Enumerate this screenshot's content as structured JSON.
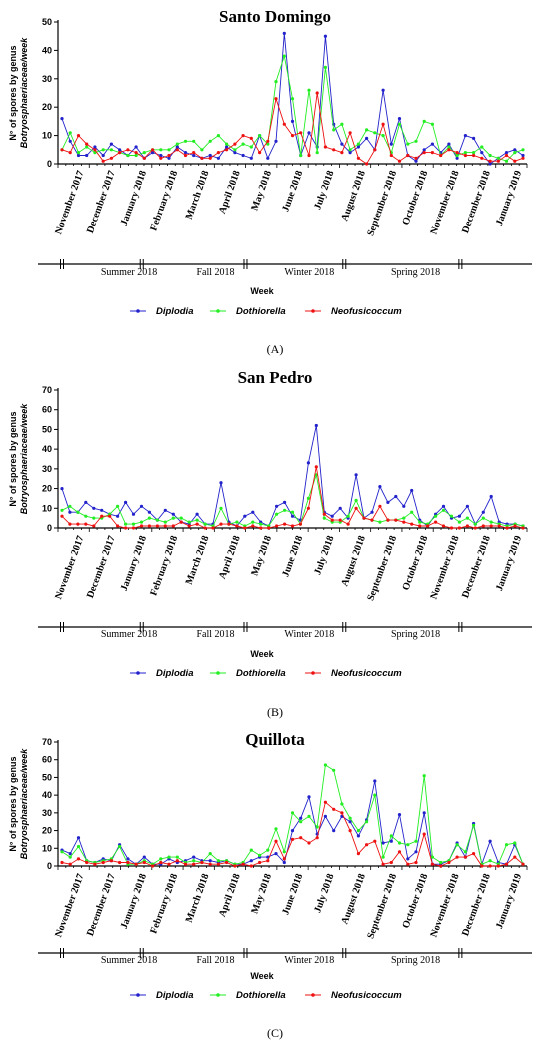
{
  "colors": {
    "Diplodia": "#2222cc",
    "Dothiorella": "#22ee22",
    "Neofusicoccum": "#ee1111"
  },
  "week_label": "Week",
  "ylabel_line1": "N° of spores by genus",
  "ylabel_line2": "Botryosphaeriaceae/week",
  "chart_data": [
    {
      "type": "line",
      "title": "Santo Domingo",
      "caption": "(A)",
      "xlabel": "Week",
      "ylabel": "N° of spores by genus Botryosphaeriaceae/week",
      "ylim": [
        0,
        50
      ],
      "yticks": [
        0,
        10,
        20,
        30,
        40,
        50
      ],
      "grid": false,
      "legend_position": "bottom",
      "x_month_labels": [
        "November 2017",
        "December 2017",
        "January 2018",
        "February 2018",
        "March 2018",
        "April 2018",
        "May 2018",
        "June 2018",
        "July 2018",
        "August 2018",
        "September 2018",
        "October 2018",
        "November 2018",
        "December 2018",
        "January 2019"
      ],
      "seasons": [
        "Summer 2018",
        "Fall 2018",
        "Winter 2018",
        "Spring 2018"
      ],
      "series": [
        {
          "name": "Diplodia",
          "values": [
            16,
            8,
            3,
            3,
            6,
            3,
            7,
            5,
            3,
            6,
            2,
            4,
            3,
            2,
            6,
            4,
            3,
            2,
            3,
            2,
            6,
            4,
            3,
            2,
            10,
            2,
            8,
            46,
            15,
            3,
            11,
            6,
            45,
            14,
            7,
            4,
            6,
            9,
            5,
            26,
            7,
            16,
            3,
            1,
            5,
            7,
            4,
            7,
            2,
            10,
            9,
            4,
            0,
            2,
            4,
            5,
            3
          ]
        },
        {
          "name": "Dothiorella",
          "values": [
            5,
            11,
            4,
            6,
            4,
            5,
            5,
            4,
            3,
            3,
            4,
            5,
            5,
            5,
            7,
            8,
            8,
            5,
            8,
            10,
            7,
            5,
            7,
            6,
            10,
            7,
            29,
            38,
            23,
            3,
            26,
            4,
            34,
            12,
            14,
            5,
            7,
            12,
            11,
            10,
            4,
            14,
            7,
            8,
            15,
            14,
            3,
            6,
            3,
            4,
            4,
            6,
            3,
            2,
            1,
            4,
            5
          ]
        },
        {
          "name": "Neofusicoccum",
          "values": [
            5,
            4,
            10,
            7,
            5,
            1,
            2,
            4,
            5,
            4,
            2,
            5,
            2,
            3,
            5,
            3,
            4,
            2,
            2,
            4,
            5,
            7,
            10,
            9,
            4,
            8,
            23,
            14,
            10,
            11,
            3,
            25,
            6,
            5,
            4,
            11,
            2,
            0,
            5,
            14,
            3,
            1,
            3,
            2,
            4,
            4,
            3,
            5,
            4,
            3,
            3,
            2,
            1,
            1,
            3,
            1,
            2
          ]
        }
      ]
    },
    {
      "type": "line",
      "title": "San Pedro",
      "caption": "(B)",
      "xlabel": "Week",
      "ylabel": "N° of spores by genus Botryosphaeriaceae/week",
      "ylim": [
        0,
        70
      ],
      "yticks": [
        0,
        10,
        20,
        30,
        40,
        50,
        60,
        70
      ],
      "grid": false,
      "legend_position": "bottom",
      "x_month_labels": [
        "November 2017",
        "December 2017",
        "January 2018",
        "February 2018",
        "March 2018",
        "April 2018",
        "May 2018",
        "June 2018",
        "July 2018",
        "August 2018",
        "September 2018",
        "October 2018",
        "November 2018",
        "December 2018",
        "January 2019"
      ],
      "seasons": [
        "Summer 2018",
        "Fall 2018",
        "Winter 2018",
        "Spring 2018"
      ],
      "series": [
        {
          "name": "Diplodia",
          "values": [
            20,
            8,
            8,
            13,
            10,
            9,
            7,
            6,
            13,
            7,
            11,
            8,
            4,
            9,
            7,
            3,
            2,
            7,
            2,
            2,
            23,
            3,
            1,
            6,
            8,
            3,
            1,
            11,
            13,
            6,
            4,
            33,
            52,
            8,
            6,
            10,
            5,
            27,
            5,
            8,
            21,
            13,
            16,
            11,
            19,
            4,
            1,
            7,
            11,
            5,
            6,
            11,
            2,
            8,
            16,
            3,
            2,
            2,
            1
          ]
        },
        {
          "name": "Dothiorella",
          "values": [
            9,
            11,
            8,
            6,
            5,
            5,
            7,
            11,
            2,
            2,
            3,
            5,
            4,
            3,
            5,
            5,
            3,
            4,
            2,
            1,
            10,
            2,
            3,
            1,
            3,
            2,
            1,
            7,
            9,
            8,
            2,
            15,
            27,
            5,
            3,
            3,
            6,
            14,
            5,
            4,
            3,
            4,
            4,
            5,
            8,
            3,
            2,
            6,
            9,
            6,
            3,
            5,
            2,
            5,
            3,
            2,
            1,
            2,
            1
          ]
        },
        {
          "name": "Neofusicoccum",
          "values": [
            6,
            2,
            2,
            2,
            1,
            6,
            6,
            1,
            0,
            0,
            1,
            1,
            1,
            1,
            1,
            3,
            1,
            2,
            0,
            0,
            2,
            2,
            1,
            0,
            1,
            0,
            0,
            1,
            2,
            1,
            2,
            10,
            31,
            7,
            4,
            4,
            2,
            10,
            5,
            4,
            11,
            4,
            4,
            3,
            2,
            1,
            1,
            3,
            1,
            0,
            0,
            1,
            0,
            1,
            1,
            1,
            0,
            1,
            0
          ]
        }
      ]
    },
    {
      "type": "line",
      "title": "Quillota",
      "caption": "(C)",
      "xlabel": "Week",
      "ylabel": "N° of spores by genus Botryosphaeriaceae/week",
      "ylim": [
        0,
        70
      ],
      "yticks": [
        0,
        10,
        20,
        30,
        40,
        50,
        60,
        70
      ],
      "grid": false,
      "legend_position": "bottom",
      "x_month_labels": [
        "November 2017",
        "December 2017",
        "January 2018",
        "February 2018",
        "March 2018",
        "April 2018",
        "May 2018",
        "June 2018",
        "July 2018",
        "August 2018",
        "September 2018",
        "October 2018",
        "November 2018",
        "December 2018",
        "January 2019"
      ],
      "seasons": [
        "Summer 2018",
        "Fall 2018",
        "Winter 2018",
        "Spring 2018"
      ],
      "series": [
        {
          "name": "Diplodia",
          "values": [
            9,
            7,
            16,
            3,
            2,
            4,
            3,
            12,
            4,
            1,
            5,
            1,
            1,
            4,
            2,
            3,
            5,
            3,
            3,
            2,
            3,
            1,
            1,
            3,
            5,
            5,
            7,
            2,
            20,
            27,
            39,
            18,
            28,
            20,
            28,
            25,
            17,
            26,
            48,
            13,
            14,
            29,
            4,
            8,
            30,
            1,
            1,
            3,
            13,
            5,
            24,
            1,
            14,
            2,
            1,
            12,
            1
          ]
        },
        {
          "name": "Dothiorella",
          "values": [
            8,
            5,
            11,
            3,
            2,
            3,
            4,
            11,
            1,
            1,
            3,
            1,
            4,
            5,
            5,
            2,
            3,
            2,
            7,
            3,
            3,
            1,
            2,
            9,
            6,
            9,
            21,
            8,
            30,
            25,
            28,
            22,
            57,
            54,
            35,
            27,
            20,
            25,
            40,
            5,
            17,
            13,
            12,
            14,
            51,
            5,
            2,
            3,
            12,
            8,
            23,
            1,
            3,
            1,
            12,
            13,
            1
          ]
        },
        {
          "name": "Neofusicoccum",
          "values": [
            2,
            1,
            4,
            2,
            1,
            2,
            3,
            2,
            2,
            1,
            2,
            0,
            2,
            1,
            3,
            1,
            1,
            2,
            1,
            1,
            2,
            0,
            1,
            0,
            2,
            3,
            14,
            4,
            15,
            16,
            13,
            16,
            36,
            32,
            30,
            20,
            7,
            12,
            14,
            1,
            2,
            8,
            1,
            2,
            18,
            1,
            0,
            2,
            5,
            5,
            7,
            0,
            0,
            0,
            1,
            5,
            1
          ]
        }
      ]
    }
  ]
}
